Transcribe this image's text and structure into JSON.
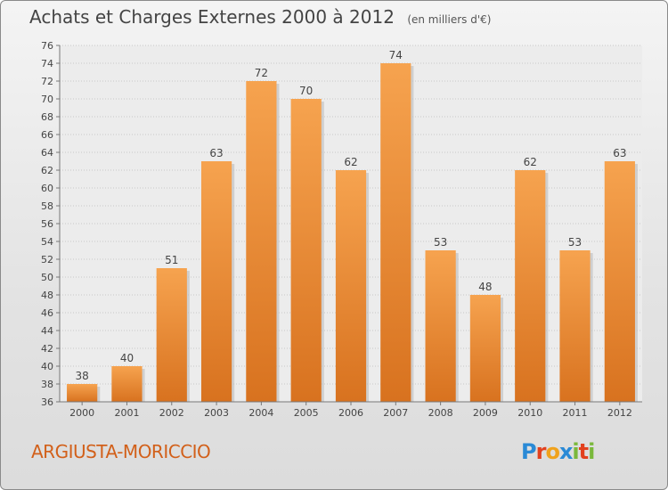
{
  "chart_data": {
    "type": "bar",
    "title": "Achats et Charges Externes 2000 à 2012",
    "subtitle": "(en milliers d'€)",
    "categories": [
      "2000",
      "2001",
      "2002",
      "2003",
      "2004",
      "2005",
      "2006",
      "2007",
      "2008",
      "2009",
      "2010",
      "2011",
      "2012"
    ],
    "values": [
      38,
      40,
      51,
      63,
      72,
      70,
      62,
      74,
      53,
      48,
      62,
      53,
      63
    ],
    "ylim": [
      36,
      76
    ],
    "ytick_step": 2,
    "grid": true,
    "bar_color_top": "#f6a34f",
    "bar_color_bottom": "#d8721f"
  },
  "footer": {
    "town": "ARGIUSTA-MORICCIO",
    "logo_letters": [
      "P",
      "r",
      "o",
      "x",
      "i",
      "t",
      "i"
    ],
    "logo_colors": [
      "#2a8ad6",
      "#e2411e",
      "#f0a21c",
      "#2a8ad6",
      "#7ab83b",
      "#e2411e",
      "#7ab83b"
    ]
  }
}
